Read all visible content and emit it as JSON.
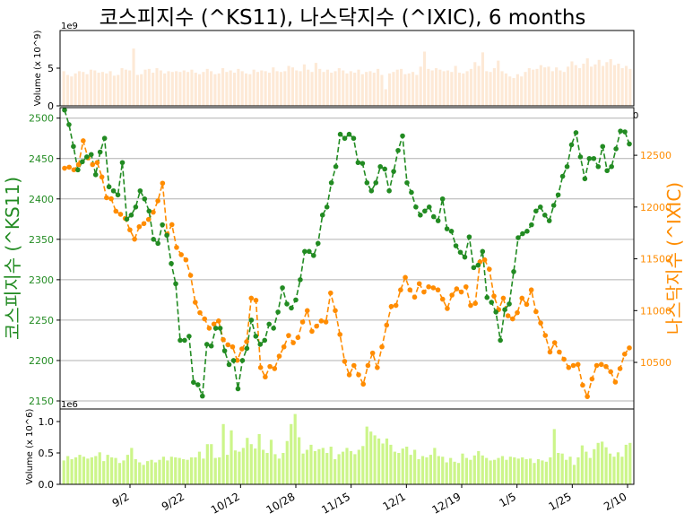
{
  "chart_data": {
    "type": "line",
    "title": "코스피지수 (^KS11), 나스닥지수 (^IXIC), 6 months",
    "x_ticks": [
      "9/2",
      "9/22",
      "10/12",
      "10/28",
      "11/15",
      "12/1",
      "12/19",
      "1/5",
      "1/25",
      "2/10"
    ],
    "top_volume": {
      "ylabel": "Volume (x 10^9)",
      "offset_label": "1e9",
      "ylim": [
        0,
        10
      ],
      "yticks": [
        "0",
        "5"
      ],
      "values": [
        4.6,
        4.1,
        3.9,
        4.3,
        4.6,
        4.5,
        4.2,
        4.8,
        4.7,
        4.4,
        4.5,
        4.3,
        4.6,
        4.0,
        4.1,
        5.0,
        4.8,
        4.7,
        7.6,
        4.1,
        4.2,
        4.8,
        4.9,
        4.4,
        5.0,
        4.7,
        4.3,
        4.6,
        4.5,
        4.6,
        4.5,
        4.7,
        4.5,
        4.8,
        4.4,
        4.2,
        4.5,
        4.9,
        4.6,
        4.2,
        4.3,
        5.0,
        4.5,
        4.7,
        4.4,
        4.9,
        4.6,
        4.3,
        4.2,
        4.8,
        4.5,
        4.7,
        4.6,
        4.4,
        5.1,
        4.6,
        4.5,
        4.6,
        5.3,
        5.1,
        4.7,
        4.6,
        5.5,
        4.8,
        4.5,
        5.7,
        4.9,
        4.5,
        4.8,
        4.4,
        4.6,
        5.0,
        4.7,
        4.3,
        4.6,
        4.4,
        4.8,
        4.2,
        4.5,
        4.6,
        4.4,
        4.9,
        4.1,
        2.2,
        4.3,
        4.5,
        4.8,
        4.9,
        4.2,
        4.3,
        4.5,
        4.1,
        5.2,
        7.2,
        4.9,
        4.7,
        5.0,
        4.8,
        4.6,
        4.7,
        4.5,
        5.3,
        4.4,
        4.3,
        4.6,
        4.9,
        5.8,
        5.3,
        7.1,
        4.6,
        4.5,
        5.0,
        6.0,
        4.6,
        4.3,
        3.9,
        3.7,
        4.2,
        3.9,
        4.5,
        5.0,
        4.8,
        4.9,
        5.4,
        5.1,
        5.2,
        4.6,
        5.1,
        4.7,
        4.5,
        5.2,
        5.9,
        5.4,
        5.0,
        5.6,
        6.3,
        5.2,
        5.5,
        6.1,
        5.3,
        5.8,
        6.2,
        5.4,
        5.6,
        5.0,
        5.3,
        4.9
      ]
    },
    "price": {
      "left_label": "코스피지수 (^KS11)",
      "right_label": "나스닥지수 (^IXIC)",
      "left_ylim": [
        2140,
        2513
      ],
      "left_yticks": [
        "2150",
        "2200",
        "2250",
        "2300",
        "2350",
        "2400",
        "2450",
        "2500"
      ],
      "right_ylim": [
        10050,
        12960
      ],
      "right_yticks": [
        "10500",
        "11000",
        "11500",
        "12000",
        "12500"
      ],
      "right_offset_label": "0",
      "series": [
        {
          "name": "코스피지수 (^KS11)",
          "color": "#228b22",
          "values": [
            2510,
            2492,
            2465,
            2436,
            2446,
            2452,
            2455,
            2430,
            2458,
            2475,
            2415,
            2410,
            2405,
            2445,
            2375,
            2380,
            2390,
            2410,
            2400,
            2385,
            2350,
            2345,
            2368,
            2355,
            2320,
            2295,
            2225,
            2225,
            2230,
            2173,
            2170,
            2156,
            2220,
            2218,
            2240,
            2240,
            2212,
            2195,
            2200,
            2165,
            2200,
            2215,
            2250,
            2230,
            2220,
            2225,
            2245,
            2240,
            2260,
            2290,
            2270,
            2265,
            2275,
            2300,
            2335,
            2335,
            2330,
            2345,
            2380,
            2390,
            2420,
            2440,
            2480,
            2475,
            2480,
            2475,
            2445,
            2444,
            2420,
            2410,
            2420,
            2440,
            2437,
            2410,
            2434,
            2460,
            2478,
            2420,
            2408,
            2390,
            2380,
            2385,
            2390,
            2378,
            2373,
            2400,
            2363,
            2360,
            2342,
            2334,
            2328,
            2353,
            2315,
            2318,
            2335,
            2278,
            2272,
            2260,
            2225,
            2263,
            2270,
            2310,
            2352,
            2357,
            2360,
            2368,
            2385,
            2390,
            2380,
            2373,
            2392,
            2405,
            2428,
            2440,
            2467,
            2482,
            2452,
            2425,
            2450,
            2450,
            2440,
            2465,
            2435,
            2440,
            2462,
            2484,
            2483,
            2468
          ]
        },
        {
          "name": "나스닥지수 (^IXIC)",
          "color": "#ff8c00",
          "values": [
            12375,
            12385,
            12360,
            12410,
            12640,
            12475,
            12410,
            12430,
            12290,
            12090,
            12080,
            11960,
            11930,
            11890,
            11780,
            11690,
            11810,
            11840,
            11880,
            11950,
            12060,
            12230,
            11740,
            11830,
            11610,
            11540,
            11490,
            11340,
            11080,
            10980,
            10920,
            10830,
            10870,
            10900,
            10720,
            10670,
            10650,
            10520,
            10630,
            10700,
            11120,
            11100,
            10450,
            10360,
            10460,
            10440,
            10560,
            10650,
            10760,
            10690,
            10740,
            10890,
            11000,
            10800,
            10850,
            10900,
            10890,
            11170,
            11000,
            10770,
            10510,
            10380,
            10470,
            10380,
            10290,
            10470,
            10590,
            10450,
            10650,
            10860,
            11040,
            11050,
            11200,
            11320,
            11200,
            11130,
            11260,
            11180,
            11230,
            11220,
            11200,
            11110,
            11020,
            11150,
            11210,
            11180,
            11230,
            11050,
            11070,
            11470,
            11490,
            11400,
            11140,
            11010,
            11120,
            10950,
            10920,
            10980,
            11120,
            11060,
            11200,
            10990,
            10880,
            10760,
            10600,
            10690,
            10600,
            10530,
            10450,
            10470,
            10480,
            10280,
            10170,
            10340,
            10470,
            10480,
            10460,
            10410,
            10310,
            10440,
            10580,
            10640
          ]
        }
      ]
    },
    "bottom_volume": {
      "ylabel": "Volume (x 10^6)",
      "offset_label": "1e6",
      "ylim": [
        0,
        1.2
      ],
      "yticks": [
        "0.0",
        "0.5",
        "1.0"
      ],
      "values": [
        0.38,
        0.45,
        0.4,
        0.43,
        0.47,
        0.44,
        0.41,
        0.43,
        0.45,
        0.51,
        0.37,
        0.47,
        0.43,
        0.42,
        0.34,
        0.38,
        0.47,
        0.58,
        0.4,
        0.35,
        0.31,
        0.37,
        0.39,
        0.35,
        0.39,
        0.44,
        0.38,
        0.44,
        0.43,
        0.42,
        0.4,
        0.39,
        0.43,
        0.43,
        0.52,
        0.41,
        0.64,
        0.64,
        0.42,
        0.43,
        0.96,
        0.47,
        0.86,
        0.54,
        0.52,
        0.58,
        0.74,
        0.64,
        0.57,
        0.8,
        0.55,
        0.5,
        0.71,
        0.48,
        0.41,
        0.5,
        0.69,
        0.96,
        1.12,
        0.75,
        0.49,
        0.55,
        0.63,
        0.53,
        0.56,
        0.58,
        0.5,
        0.6,
        0.4,
        0.48,
        0.52,
        0.58,
        0.53,
        0.48,
        0.55,
        0.61,
        0.92,
        0.84,
        0.78,
        0.73,
        0.65,
        0.73,
        0.63,
        0.52,
        0.5,
        0.57,
        0.6,
        0.47,
        0.55,
        0.4,
        0.45,
        0.43,
        0.47,
        0.58,
        0.45,
        0.44,
        0.35,
        0.42,
        0.36,
        0.34,
        0.49,
        0.42,
        0.39,
        0.46,
        0.53,
        0.46,
        0.42,
        0.38,
        0.39,
        0.42,
        0.45,
        0.39,
        0.44,
        0.43,
        0.41,
        0.43,
        0.4,
        0.41,
        0.34,
        0.4,
        0.38,
        0.36,
        0.43,
        0.88,
        0.5,
        0.49,
        0.39,
        0.44,
        0.31,
        0.43,
        0.62,
        0.52,
        0.42,
        0.56,
        0.66,
        0.68,
        0.59,
        0.49,
        0.44,
        0.51,
        0.44,
        0.63,
        0.66
      ]
    }
  }
}
